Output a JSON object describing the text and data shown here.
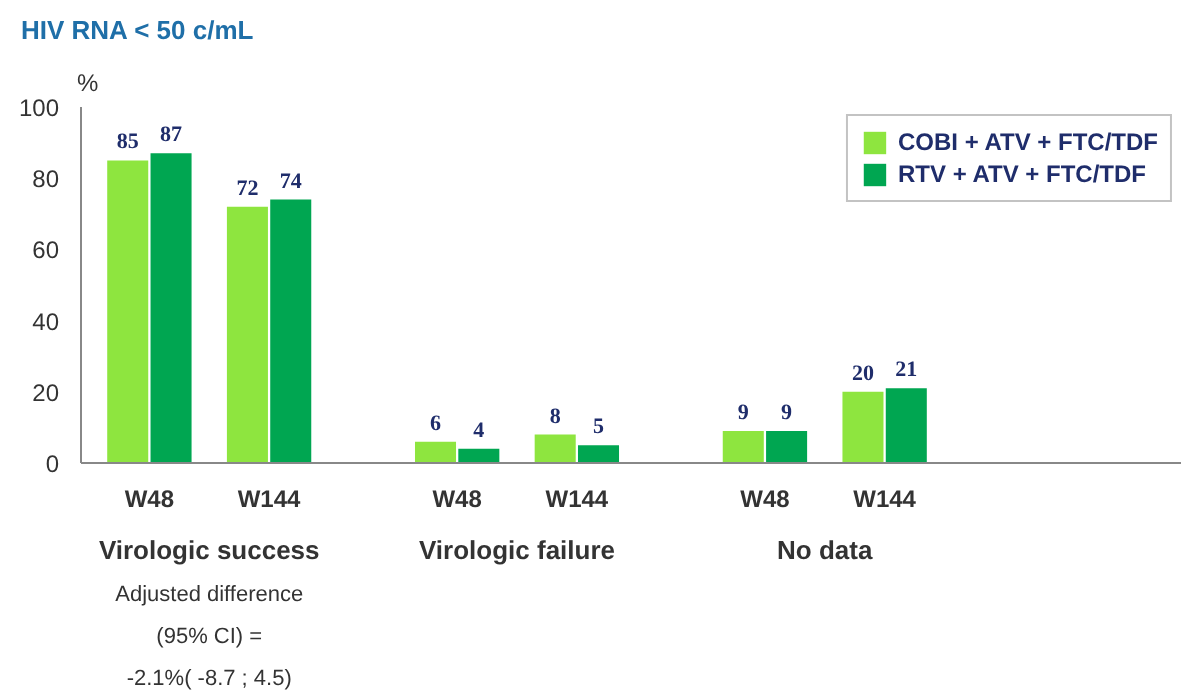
{
  "chart_data": {
    "type": "bar",
    "title": "HIV RNA < 50 c/mL",
    "ylabel": "%",
    "categories": [
      "W48",
      "W144",
      "W48",
      "W144",
      "W48",
      "W144"
    ],
    "series": [
      {
        "name": "COBI + ATV + FTC/TDF",
        "color": "#8ee53f",
        "values": [
          85,
          72,
          6,
          8,
          9,
          20
        ]
      },
      {
        "name": "RTV + ATV + FTC/TDF",
        "color": "#00a651",
        "values": [
          87,
          74,
          4,
          5,
          9,
          21
        ]
      }
    ],
    "ylim": [
      0,
      100
    ],
    "yticks": [
      0,
      20,
      40,
      60,
      80,
      100
    ],
    "data_labels": true,
    "legend": "top right",
    "grid": false,
    "annotations": [
      "Virologic success",
      "Virologic failure",
      "No data",
      "Adjusted difference\n(95% CI) =\n-2.1%( -8.7 ; 4.5)"
    ]
  }
}
